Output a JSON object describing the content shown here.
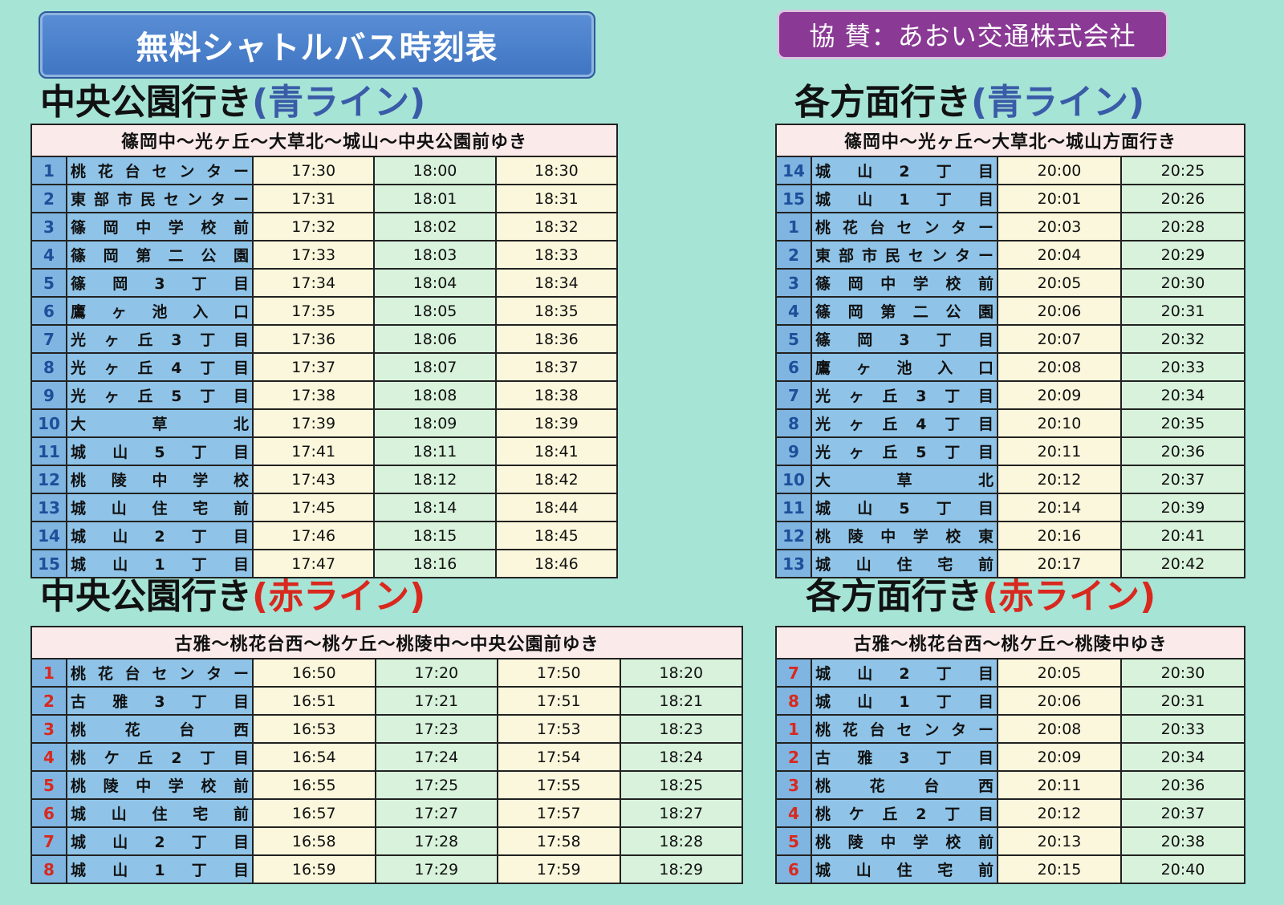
{
  "title": "無料シャトルバス時刻表",
  "sponsor": "協 賛：あおい交通株式会社",
  "tables": {
    "t1": {
      "heading": "中央公園行き",
      "line": "(青ライン)",
      "route": "篠岡中〜光ヶ丘〜大草北〜城山〜中央公園前ゆき",
      "rows": [
        {
          "no": "1",
          "stop": "桃花台センター",
          "times": [
            "17:30",
            "18:00",
            "18:30"
          ]
        },
        {
          "no": "2",
          "stop": "東部市民センター",
          "times": [
            "17:31",
            "18:01",
            "18:31"
          ]
        },
        {
          "no": "3",
          "stop": "篠岡中学校前",
          "times": [
            "17:32",
            "18:02",
            "18:32"
          ]
        },
        {
          "no": "4",
          "stop": "篠岡第二公園",
          "times": [
            "17:33",
            "18:03",
            "18:33"
          ]
        },
        {
          "no": "5",
          "stop": "篠岡3丁目",
          "times": [
            "17:34",
            "18:04",
            "18:34"
          ]
        },
        {
          "no": "6",
          "stop": "鷹ヶ池入口",
          "times": [
            "17:35",
            "18:05",
            "18:35"
          ]
        },
        {
          "no": "7",
          "stop": "光ヶ丘3丁目",
          "times": [
            "17:36",
            "18:06",
            "18:36"
          ]
        },
        {
          "no": "8",
          "stop": "光ヶ丘4丁目",
          "times": [
            "17:37",
            "18:07",
            "18:37"
          ]
        },
        {
          "no": "9",
          "stop": "光ヶ丘5丁目",
          "times": [
            "17:38",
            "18:08",
            "18:38"
          ]
        },
        {
          "no": "10",
          "stop": "大草北",
          "times": [
            "17:39",
            "18:09",
            "18:39"
          ]
        },
        {
          "no": "11",
          "stop": "城山5丁目",
          "times": [
            "17:41",
            "18:11",
            "18:41"
          ]
        },
        {
          "no": "12",
          "stop": "桃陵中学校",
          "times": [
            "17:43",
            "18:12",
            "18:42"
          ]
        },
        {
          "no": "13",
          "stop": "城山住宅前",
          "times": [
            "17:45",
            "18:14",
            "18:44"
          ]
        },
        {
          "no": "14",
          "stop": "城山2丁目",
          "times": [
            "17:46",
            "18:15",
            "18:45"
          ]
        },
        {
          "no": "15",
          "stop": "城山1丁目",
          "times": [
            "17:47",
            "18:16",
            "18:46"
          ]
        }
      ]
    },
    "t2": {
      "heading": "各方面行き",
      "line": "(青ライン)",
      "route": "篠岡中〜光ヶ丘〜大草北〜城山方面行き",
      "rows": [
        {
          "no": "14",
          "stop": "城山2丁目",
          "times": [
            "20:00",
            "20:25"
          ]
        },
        {
          "no": "15",
          "stop": "城山1丁目",
          "times": [
            "20:01",
            "20:26"
          ]
        },
        {
          "no": "1",
          "stop": "桃花台センター",
          "times": [
            "20:03",
            "20:28"
          ]
        },
        {
          "no": "2",
          "stop": "東部市民センター",
          "times": [
            "20:04",
            "20:29"
          ]
        },
        {
          "no": "3",
          "stop": "篠岡中学校前",
          "times": [
            "20:05",
            "20:30"
          ]
        },
        {
          "no": "4",
          "stop": "篠岡第二公園",
          "times": [
            "20:06",
            "20:31"
          ]
        },
        {
          "no": "5",
          "stop": "篠岡3丁目",
          "times": [
            "20:07",
            "20:32"
          ]
        },
        {
          "no": "6",
          "stop": "鷹ヶ池入口",
          "times": [
            "20:08",
            "20:33"
          ]
        },
        {
          "no": "7",
          "stop": "光ヶ丘3丁目",
          "times": [
            "20:09",
            "20:34"
          ]
        },
        {
          "no": "8",
          "stop": "光ヶ丘4丁目",
          "times": [
            "20:10",
            "20:35"
          ]
        },
        {
          "no": "9",
          "stop": "光ヶ丘5丁目",
          "times": [
            "20:11",
            "20:36"
          ]
        },
        {
          "no": "10",
          "stop": "大草北",
          "times": [
            "20:12",
            "20:37"
          ]
        },
        {
          "no": "11",
          "stop": "城山5丁目",
          "times": [
            "20:14",
            "20:39"
          ]
        },
        {
          "no": "12",
          "stop": "桃陵中学校東",
          "times": [
            "20:16",
            "20:41"
          ]
        },
        {
          "no": "13",
          "stop": "城山住宅前",
          "times": [
            "20:17",
            "20:42"
          ]
        }
      ]
    },
    "t3": {
      "heading": "中央公園行き",
      "line": "(赤ライン)",
      "route": "古雅〜桃花台西〜桃ケ丘〜桃陵中〜中央公園前ゆき",
      "rows": [
        {
          "no": "1",
          "stop": "桃花台センター",
          "times": [
            "16:50",
            "17:20",
            "17:50",
            "18:20"
          ]
        },
        {
          "no": "2",
          "stop": "古雅3丁目",
          "times": [
            "16:51",
            "17:21",
            "17:51",
            "18:21"
          ]
        },
        {
          "no": "3",
          "stop": "桃花台西",
          "times": [
            "16:53",
            "17:23",
            "17:53",
            "18:23"
          ]
        },
        {
          "no": "4",
          "stop": "桃ケ丘2丁目",
          "times": [
            "16:54",
            "17:24",
            "17:54",
            "18:24"
          ]
        },
        {
          "no": "5",
          "stop": "桃陵中学校前",
          "times": [
            "16:55",
            "17:25",
            "17:55",
            "18:25"
          ]
        },
        {
          "no": "6",
          "stop": "城山住宅前",
          "times": [
            "16:57",
            "17:27",
            "17:57",
            "18:27"
          ]
        },
        {
          "no": "7",
          "stop": "城山2丁目",
          "times": [
            "16:58",
            "17:28",
            "17:58",
            "18:28"
          ]
        },
        {
          "no": "8",
          "stop": "城山1丁目",
          "times": [
            "16:59",
            "17:29",
            "17:59",
            "18:29"
          ]
        }
      ]
    },
    "t4": {
      "heading": "各方面行き",
      "line": "(赤ライン)",
      "route": "古雅〜桃花台西〜桃ケ丘〜桃陵中ゆき",
      "rows": [
        {
          "no": "7",
          "stop": "城山2丁目",
          "times": [
            "20:05",
            "20:30"
          ]
        },
        {
          "no": "8",
          "stop": "城山1丁目",
          "times": [
            "20:06",
            "20:31"
          ]
        },
        {
          "no": "1",
          "stop": "桃花台センター",
          "times": [
            "20:08",
            "20:33"
          ]
        },
        {
          "no": "2",
          "stop": "古雅3丁目",
          "times": [
            "20:09",
            "20:34"
          ]
        },
        {
          "no": "3",
          "stop": "桃花台西",
          "times": [
            "20:11",
            "20:36"
          ]
        },
        {
          "no": "4",
          "stop": "桃ケ丘2丁目",
          "times": [
            "20:12",
            "20:37"
          ]
        },
        {
          "no": "5",
          "stop": "桃陵中学校前",
          "times": [
            "20:13",
            "20:38"
          ]
        },
        {
          "no": "6",
          "stop": "城山住宅前",
          "times": [
            "20:15",
            "20:40"
          ]
        }
      ]
    }
  }
}
